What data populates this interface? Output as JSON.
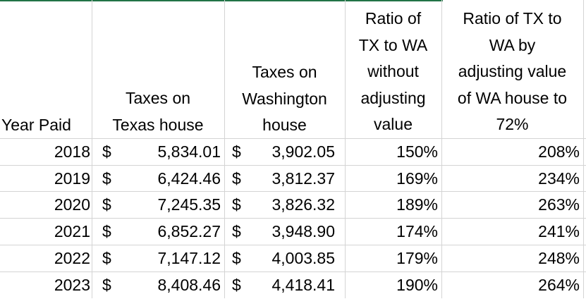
{
  "headers": {
    "year": "Year Paid",
    "tx_taxes": [
      "Taxes on",
      "Texas house"
    ],
    "wa_taxes": [
      "Taxes on",
      "Washington",
      "house"
    ],
    "ratio_raw": [
      "Ratio of",
      "TX to WA",
      "without",
      "adjusting",
      "value"
    ],
    "ratio_adj": [
      "Ratio of TX to",
      "WA by",
      "adjusting value",
      "of WA house to",
      "72%"
    ]
  },
  "currency_symbol": "$",
  "rows": [
    {
      "year": "2018",
      "tx": "5,834.01",
      "wa": "3,902.05",
      "ratio": "150%",
      "ratio_adj": "208%"
    },
    {
      "year": "2019",
      "tx": "6,424.46",
      "wa": "3,812.37",
      "ratio": "169%",
      "ratio_adj": "234%"
    },
    {
      "year": "2020",
      "tx": "7,245.35",
      "wa": "3,826.32",
      "ratio": "189%",
      "ratio_adj": "263%"
    },
    {
      "year": "2021",
      "tx": "6,852.27",
      "wa": "3,948.90",
      "ratio": "174%",
      "ratio_adj": "241%"
    },
    {
      "year": "2022",
      "tx": "7,147.12",
      "wa": "4,003.85",
      "ratio": "179%",
      "ratio_adj": "248%"
    },
    {
      "year": "2023",
      "tx": "8,408.46",
      "wa": "4,418.41",
      "ratio": "190%",
      "ratio_adj": "264%"
    }
  ],
  "colors": {
    "gridline": "#d4d4d4",
    "selection": "#217346",
    "text": "#000000"
  }
}
